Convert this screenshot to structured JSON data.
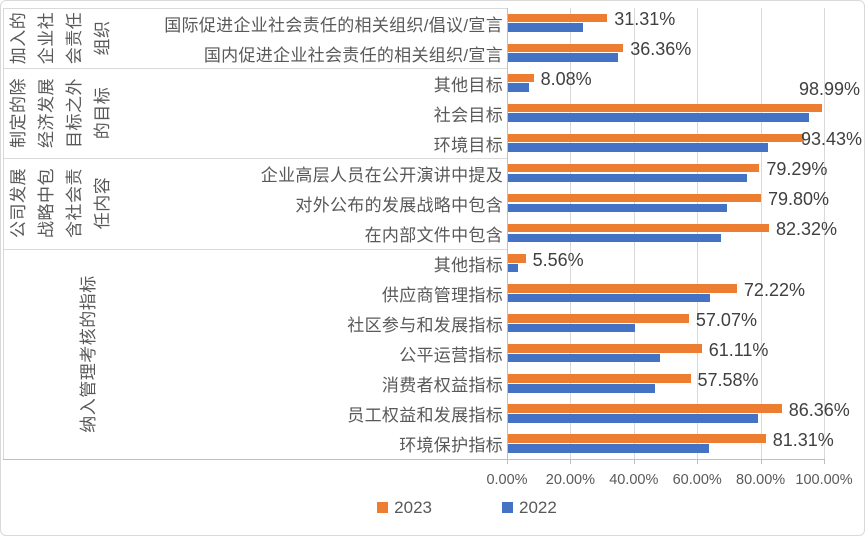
{
  "chart_data": {
    "type": "bar",
    "orientation": "horizontal",
    "title": "",
    "x_axis": {
      "ticks": [
        "0.00%",
        "20.00%",
        "40.00%",
        "60.00%",
        "80.00%",
        "100.00%"
      ],
      "min": 0,
      "max": 100,
      "grid": true
    },
    "legend": {
      "position": "bottom",
      "entries": [
        {
          "label": "2023",
          "color": "#ED7D31"
        },
        {
          "label": "2022",
          "color": "#4472C4"
        }
      ]
    },
    "series_names": [
      "2023",
      "2022"
    ],
    "values_2022_estimated": true,
    "groups": [
      {
        "label": "加入的企业社会责任组织",
        "label_lines": [
          "加入的",
          "企业社",
          "会责任",
          "组织"
        ],
        "items": [
          {
            "category": "国际促进企业社会责任的相关组织/倡议/宣言",
            "v2023": 31.31,
            "label2023": "31.31%",
            "v2022": 23.7
          },
          {
            "category": "国内促进企业社会责任的相关组织/宣言",
            "v2023": 36.36,
            "label2023": "36.36%",
            "v2022": 34.8
          }
        ]
      },
      {
        "label": "制定的除经济发展目标之外的目标",
        "label_lines": [
          "制定的除",
          "经济发展",
          "目标之外",
          "的目标"
        ],
        "items": [
          {
            "category": "其他目标",
            "v2023": 8.08,
            "label2023": "8.08%",
            "v2022": 6.6
          },
          {
            "category": "社会目标",
            "v2023": 98.99,
            "label2023": "98.99%",
            "v2022": 95.0,
            "label_above": true
          },
          {
            "category": "环境目标",
            "v2023": 93.43,
            "label2023": "93.43%",
            "v2022": 82.0
          }
        ]
      },
      {
        "label": "公司发展战略中包含社会责任内容",
        "label_lines": [
          "公司发展",
          "战略中包",
          "含社会责",
          "任内容"
        ],
        "items": [
          {
            "category": "企业高层人员在公开演讲中提及",
            "v2023": 79.29,
            "label2023": "79.29%",
            "v2022": 75.3
          },
          {
            "category": "对外公布的发展战略中包含",
            "v2023": 79.8,
            "label2023": "79.80%",
            "v2022": 69.2
          },
          {
            "category": "在内部文件中包含",
            "v2023": 82.32,
            "label2023": "82.32%",
            "v2022": 67.2
          }
        ]
      },
      {
        "label": "纳入管理考核的指标",
        "label_lines": [
          "纳入管理考核的指标"
        ],
        "items": [
          {
            "category": "其他指标",
            "v2023": 5.56,
            "label2023": "5.56%",
            "v2022": 3.0
          },
          {
            "category": "供应商管理指标",
            "v2023": 72.22,
            "label2023": "72.22%",
            "v2022": 63.6
          },
          {
            "category": "社区参与和发展指标",
            "v2023": 57.07,
            "label2023": "57.07%",
            "v2022": 40.0
          },
          {
            "category": "公平运营指标",
            "v2023": 61.11,
            "label2023": "61.11%",
            "v2022": 48.0
          },
          {
            "category": "消费者权益指标",
            "v2023": 57.58,
            "label2023": "57.58%",
            "v2022": 46.5
          },
          {
            "category": "员工权益和发展指标",
            "v2023": 86.36,
            "label2023": "86.36%",
            "v2022": 78.8
          },
          {
            "category": "环境保护指标",
            "v2023": 81.31,
            "label2023": "81.31%",
            "v2022": 63.5
          }
        ]
      }
    ],
    "colors": {
      "series_2023": "#ED7D31",
      "series_2022": "#4472C4",
      "gridline": "#D9D9D9",
      "axis_line": "#BFBFBF",
      "axis_text": "#595959",
      "data_label_text": "#404040",
      "chart_border": "#D9D9D9"
    }
  }
}
